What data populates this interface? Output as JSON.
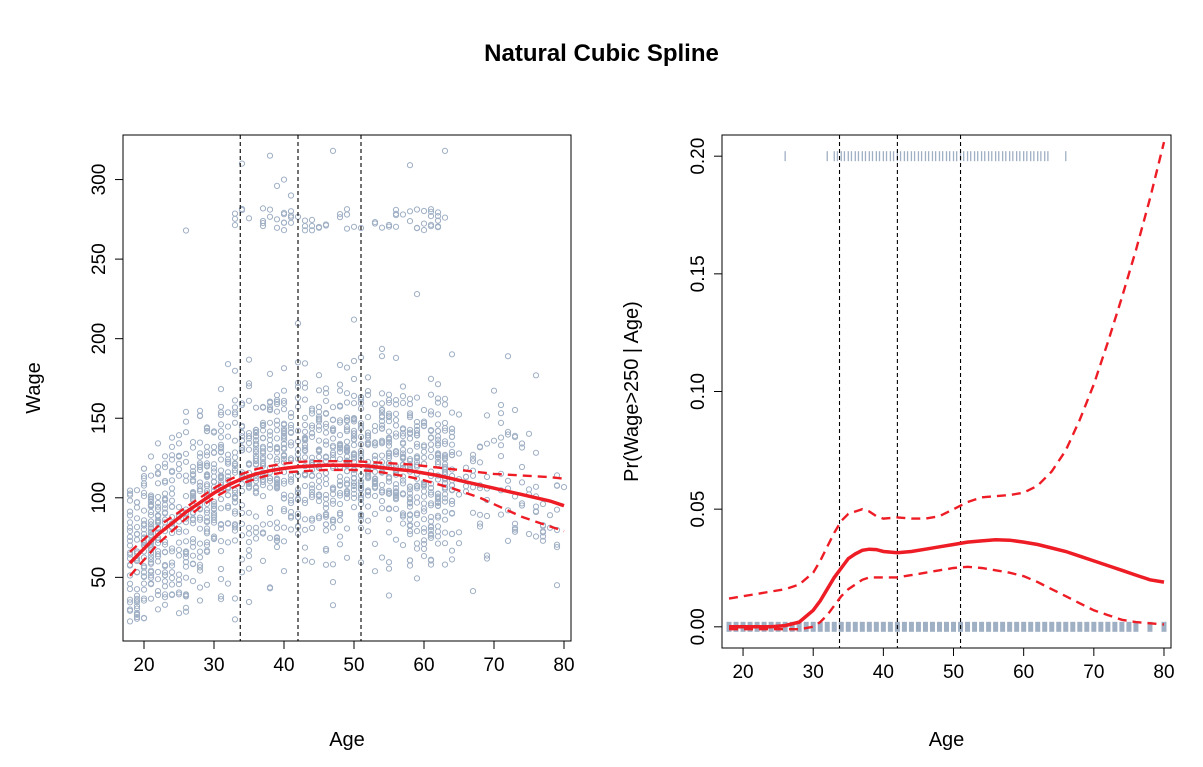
{
  "figure": {
    "title": "Natural Cubic Spline"
  },
  "chart_data": [
    {
      "type": "scatter",
      "xlabel": "Age",
      "ylabel": "Wage",
      "xlim": [
        17,
        81
      ],
      "ylim": [
        10,
        328
      ],
      "x_ticks": [
        20,
        30,
        40,
        50,
        60,
        70,
        80
      ],
      "y_ticks": [
        50,
        100,
        150,
        200,
        250,
        300
      ],
      "knots": [
        33.75,
        42,
        51
      ],
      "point_color": "#9FAFC4",
      "fit_color": "#EE1C25",
      "fit": {
        "x": [
          18,
          20,
          22,
          24,
          26,
          28,
          30,
          32,
          34,
          36,
          38,
          40,
          42,
          44,
          46,
          48,
          50,
          52,
          54,
          56,
          58,
          60,
          62,
          64,
          66,
          68,
          70,
          72,
          74,
          76,
          78,
          80
        ],
        "y": [
          59,
          68,
          77,
          84,
          91,
          97,
          103,
          108,
          112,
          115,
          117,
          118.5,
          119.5,
          120,
          120.5,
          120.5,
          120.5,
          120,
          119,
          118,
          117,
          115.5,
          114,
          112,
          110,
          108,
          106,
          104,
          102,
          100,
          98,
          95
        ]
      },
      "upper": {
        "x": [
          18,
          20,
          22,
          24,
          26,
          28,
          30,
          32,
          34,
          36,
          38,
          40,
          42,
          44,
          46,
          48,
          50,
          52,
          54,
          56,
          58,
          60,
          62,
          64,
          66,
          68,
          70,
          72,
          74,
          76,
          78,
          80
        ],
        "y": [
          66,
          74,
          82,
          88,
          94,
          100,
          106,
          111,
          115,
          118,
          120,
          121.5,
          122.5,
          123,
          123,
          123,
          123,
          122.5,
          122,
          121.5,
          121,
          120,
          119,
          118,
          117,
          116,
          115,
          114.5,
          114,
          113.5,
          113,
          112
        ]
      },
      "lower": {
        "x": [
          18,
          20,
          22,
          24,
          26,
          28,
          30,
          32,
          34,
          36,
          38,
          40,
          42,
          44,
          46,
          48,
          50,
          52,
          54,
          56,
          58,
          60,
          62,
          64,
          66,
          68,
          70,
          72,
          74,
          76,
          78,
          80
        ],
        "y": [
          51,
          61,
          71,
          79,
          87,
          94,
          100,
          105,
          109,
          112,
          114.5,
          116,
          116.5,
          117,
          117.5,
          117.5,
          117.5,
          117,
          116,
          114.5,
          113,
          111,
          108.5,
          106,
          103,
          100,
          96,
          92,
          88,
          85,
          82,
          79
        ]
      },
      "scatter_summary": {
        "age_range": [
          18,
          80
        ],
        "wage_range": [
          20,
          318
        ]
      }
    },
    {
      "type": "line",
      "xlabel": "Age",
      "ylabel": "Pr(Wage>250 | Age)",
      "xlim": [
        17,
        81
      ],
      "ylim": [
        -0.009,
        0.209
      ],
      "x_ticks": [
        20,
        30,
        40,
        50,
        60,
        70,
        80
      ],
      "y_ticks": [
        0.0,
        0.05,
        0.1,
        0.15,
        0.2
      ],
      "y_tick_labels": [
        "0.00",
        "0.05",
        "0.10",
        "0.15",
        "0.20"
      ],
      "knots": [
        33.75,
        42,
        51
      ],
      "rug_color": "#9FAFC4",
      "fit_color": "#EE1C25",
      "fit": {
        "x": [
          18,
          20,
          22,
          24,
          26,
          28,
          30,
          31,
          32,
          33,
          34,
          35,
          36,
          37,
          38,
          39,
          40,
          42,
          44,
          46,
          48,
          50,
          52,
          54,
          56,
          58,
          60,
          62,
          64,
          66,
          68,
          70,
          72,
          74,
          76,
          78,
          80
        ],
        "y": [
          0.0,
          0.0,
          0.0,
          0.0,
          0.0005,
          0.002,
          0.007,
          0.011,
          0.016,
          0.021,
          0.025,
          0.029,
          0.031,
          0.0325,
          0.033,
          0.0328,
          0.032,
          0.0315,
          0.032,
          0.033,
          0.034,
          0.035,
          0.036,
          0.0365,
          0.037,
          0.0368,
          0.036,
          0.035,
          0.0335,
          0.032,
          0.03,
          0.028,
          0.026,
          0.024,
          0.022,
          0.02,
          0.019
        ]
      },
      "upper": {
        "x": [
          18,
          20,
          22,
          24,
          26,
          28,
          30,
          31,
          32,
          33,
          34,
          35,
          36,
          37,
          38,
          39,
          40,
          42,
          44,
          46,
          48,
          50,
          52,
          54,
          56,
          58,
          60,
          62,
          64,
          66,
          68,
          70,
          72,
          74,
          76,
          78,
          80
        ],
        "y": [
          0.012,
          0.013,
          0.014,
          0.015,
          0.016,
          0.018,
          0.023,
          0.028,
          0.034,
          0.04,
          0.045,
          0.048,
          0.049,
          0.05,
          0.049,
          0.047,
          0.046,
          0.0465,
          0.046,
          0.046,
          0.047,
          0.05,
          0.053,
          0.055,
          0.0555,
          0.056,
          0.057,
          0.06,
          0.066,
          0.075,
          0.088,
          0.103,
          0.121,
          0.14,
          0.16,
          0.182,
          0.206
        ]
      },
      "lower": {
        "x": [
          18,
          20,
          22,
          24,
          26,
          28,
          30,
          31,
          32,
          33,
          34,
          35,
          36,
          37,
          38,
          39,
          40,
          42,
          44,
          46,
          48,
          50,
          52,
          54,
          56,
          58,
          60,
          62,
          64,
          66,
          68,
          70,
          72,
          74,
          76,
          78,
          80
        ],
        "y": [
          -0.001,
          -0.001,
          -0.001,
          -0.001,
          -0.001,
          -0.001,
          0.0,
          0.002,
          0.005,
          0.009,
          0.013,
          0.016,
          0.018,
          0.02,
          0.021,
          0.021,
          0.021,
          0.021,
          0.022,
          0.023,
          0.024,
          0.025,
          0.0255,
          0.025,
          0.024,
          0.023,
          0.0215,
          0.019,
          0.016,
          0.013,
          0.01,
          0.007,
          0.005,
          0.003,
          0.002,
          0.0015,
          0.001
        ]
      },
      "rug_top_y": 0.2,
      "rug_bottom_y": 0.0,
      "rug_top_ages": [
        26,
        32,
        33,
        34,
        35,
        36,
        37,
        38,
        39,
        40,
        41,
        42,
        43,
        44,
        45,
        46,
        47,
        48,
        49,
        50,
        51,
        52,
        53,
        54,
        55,
        56,
        57,
        58,
        59,
        60,
        61,
        62,
        63,
        66
      ],
      "rug_bottom_age_range": [
        18,
        80
      ]
    }
  ]
}
